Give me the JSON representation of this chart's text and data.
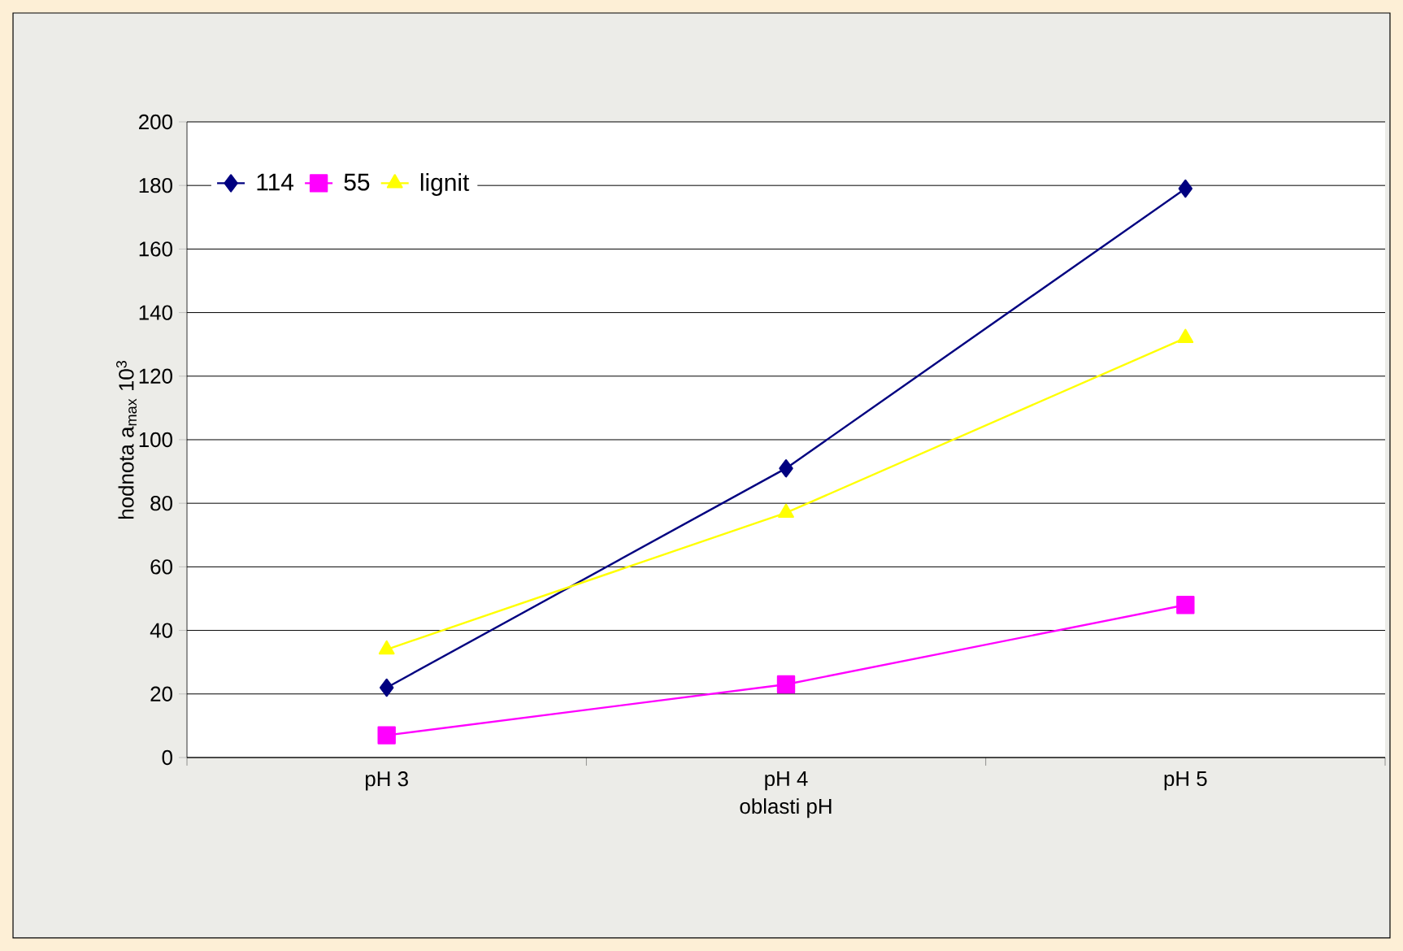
{
  "chart_data": {
    "type": "line",
    "xlabel": "oblasti pH",
    "ylabel": "hodnota a$_{max}$ 10$^{3}$",
    "categories": [
      "pH 3",
      "pH 4",
      "pH 5"
    ],
    "series": [
      {
        "name": "114",
        "color": "#000080",
        "marker": "diamond",
        "values": [
          22,
          91,
          179
        ]
      },
      {
        "name": "55",
        "color": "#ff00ff",
        "marker": "square",
        "values": [
          7,
          23,
          48
        ]
      },
      {
        "name": "lignit",
        "color": "#ffff00",
        "marker": "triangle",
        "values": [
          34,
          77,
          132
        ]
      }
    ],
    "ylim": [
      0,
      200
    ],
    "yticks": [
      0,
      20,
      40,
      60,
      80,
      100,
      120,
      140,
      160,
      180,
      200
    ],
    "grid": "y",
    "legend": "top left"
  }
}
